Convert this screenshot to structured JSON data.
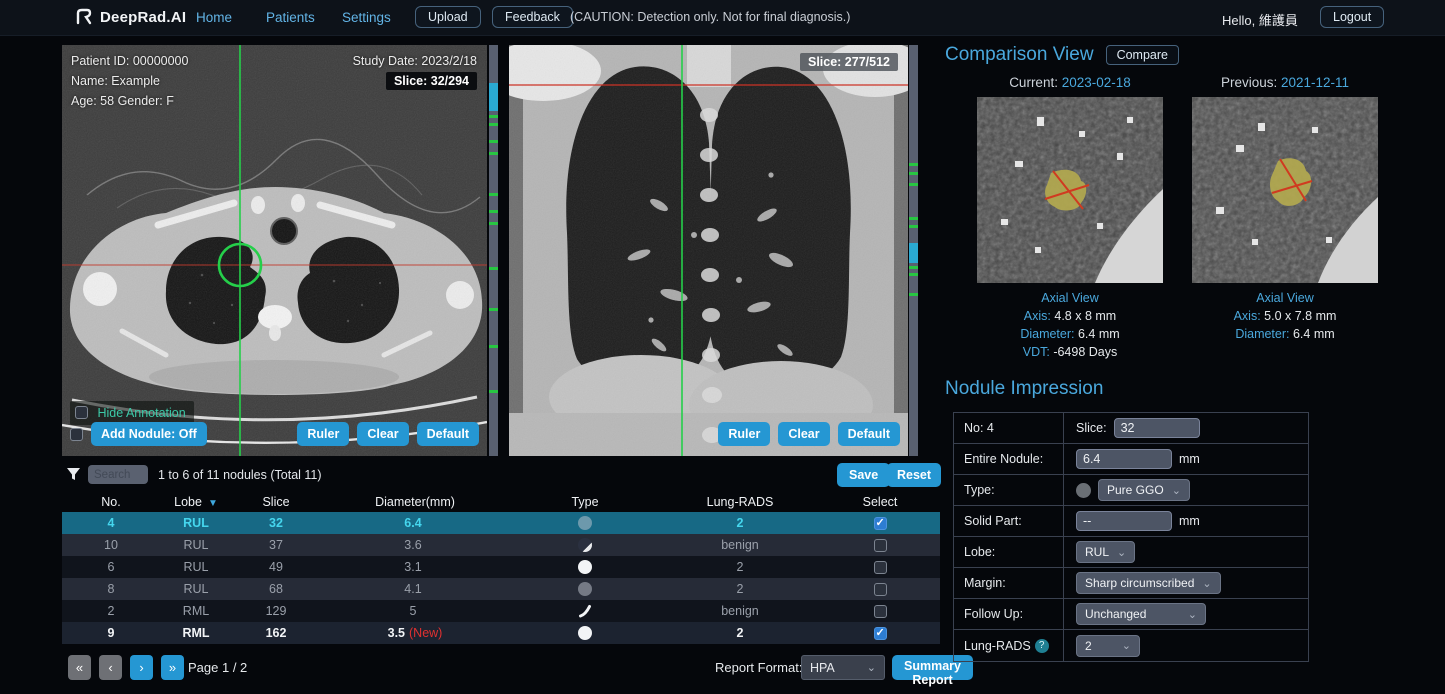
{
  "navbar": {
    "logo": "DeepRad.AI",
    "links": [
      {
        "label": "Home"
      },
      {
        "label": "Patients"
      },
      {
        "label": "Settings"
      }
    ],
    "upload_label": "Upload",
    "feedback_label": "Feedback",
    "caution": "(CAUTION: Detection only. Not for final diagnosis.)",
    "greeting": "Hello, 維護員",
    "logout_label": "Logout"
  },
  "axial": {
    "patient_id": "Patient ID: 00000000",
    "name": "Name: Example",
    "age_gender": "Age: 58 Gender: F",
    "study_date": "Study Date: 2023/2/18",
    "slice_badge": "Slice: 32/294",
    "hide_annotation_label": "Hide Annotation",
    "add_nodule_label": "Add Nodule: Off",
    "ruler": "Ruler",
    "clear": "Clear",
    "default": "Default"
  },
  "coronal": {
    "slice_badge": "Slice: 277/512",
    "ruler": "Ruler",
    "clear": "Clear",
    "default": "Default"
  },
  "actions": {
    "save": "Save",
    "reset": "Reset"
  },
  "comparison": {
    "title": "Comparison View",
    "compare_label": "Compare",
    "current_label": "Current:",
    "current_date": "2023-02-18",
    "previous_label": "Previous:",
    "previous_date": "2021-12-11",
    "current_info": {
      "view": "Axial View",
      "axis_label": "Axis:",
      "axis": "4.8 x 8 mm",
      "diameter_label": "Diameter:",
      "diameter": "6.4 mm",
      "vdt_label": "VDT:",
      "vdt": "-6498 Days"
    },
    "previous_info": {
      "view": "Axial View",
      "axis_label": "Axis:",
      "axis": "5.0 x 7.8 mm",
      "diameter_label": "Diameter:",
      "diameter": "6.4 mm"
    }
  },
  "impression": {
    "title": "Nodule Impression",
    "no_label": "No: 4",
    "slice_label": "Slice:",
    "slice_value": "32",
    "entire_label": "Entire Nodule:",
    "entire_value": "6.4",
    "entire_unit": "mm",
    "type_label": "Type:",
    "type_value": "Pure GGO",
    "solid_label": "Solid Part:",
    "solid_value": "--",
    "solid_unit": "mm",
    "lobe_label": "Lobe:",
    "lobe_value": "RUL",
    "margin_label": "Margin:",
    "margin_value": "Sharp circumscribed",
    "followup_label": "Follow Up:",
    "followup_value": "Unchanged",
    "lungrads_label": "Lung-RADS",
    "lungrads_help": "?",
    "lungrads_value": "2"
  },
  "table": {
    "search_placeholder": "Search",
    "summary": "1 to 6 of 11 nodules (Total 11)",
    "columns": {
      "no": "No.",
      "lobe": "Lobe",
      "slice": "Slice",
      "diameter": "Diameter(mm)",
      "type": "Type",
      "lung_rads": "Lung-RADS",
      "select": "Select"
    },
    "rows": [
      {
        "no": "4",
        "lobe": "RUL",
        "slice": "32",
        "diameter": "6.4",
        "flag": "",
        "type": "ggo",
        "lung_rads": "2",
        "checked": true,
        "selected": true
      },
      {
        "no": "10",
        "lobe": "RUL",
        "slice": "37",
        "diameter": "3.6",
        "flag": "",
        "type": "part-solid",
        "lung_rads": "benign",
        "checked": false,
        "selected": false
      },
      {
        "no": "6",
        "lobe": "RUL",
        "slice": "49",
        "diameter": "3.1",
        "flag": "",
        "type": "solid",
        "lung_rads": "2",
        "checked": false,
        "selected": false
      },
      {
        "no": "8",
        "lobe": "RUL",
        "slice": "68",
        "diameter": "4.1",
        "flag": "",
        "type": "ggo",
        "lung_rads": "2",
        "checked": false,
        "selected": false
      },
      {
        "no": "2",
        "lobe": "RML",
        "slice": "129",
        "diameter": "5",
        "flag": "",
        "type": "linear",
        "lung_rads": "benign",
        "checked": false,
        "selected": false
      },
      {
        "no": "9",
        "lobe": "RML",
        "slice": "162",
        "diameter": "3.5",
        "flag": "(New)",
        "type": "solid",
        "lung_rads": "2",
        "checked": true,
        "selected": false
      }
    ]
  },
  "pagination": {
    "first": "«",
    "prev": "‹",
    "next": "›",
    "last": "»",
    "page_label": "Page 1 / 2"
  },
  "report": {
    "format_label": "Report Format:",
    "format_value": "HPA",
    "summary_label": "Summary Report"
  },
  "colors": {
    "accent": "#2597d3",
    "heading_blue": "#4aa8dd",
    "selected_row": "#176985",
    "crosshair_green": "#25cf4a",
    "reference_red": "#c23b2e",
    "nodule_yellow": "#b3a94f"
  }
}
